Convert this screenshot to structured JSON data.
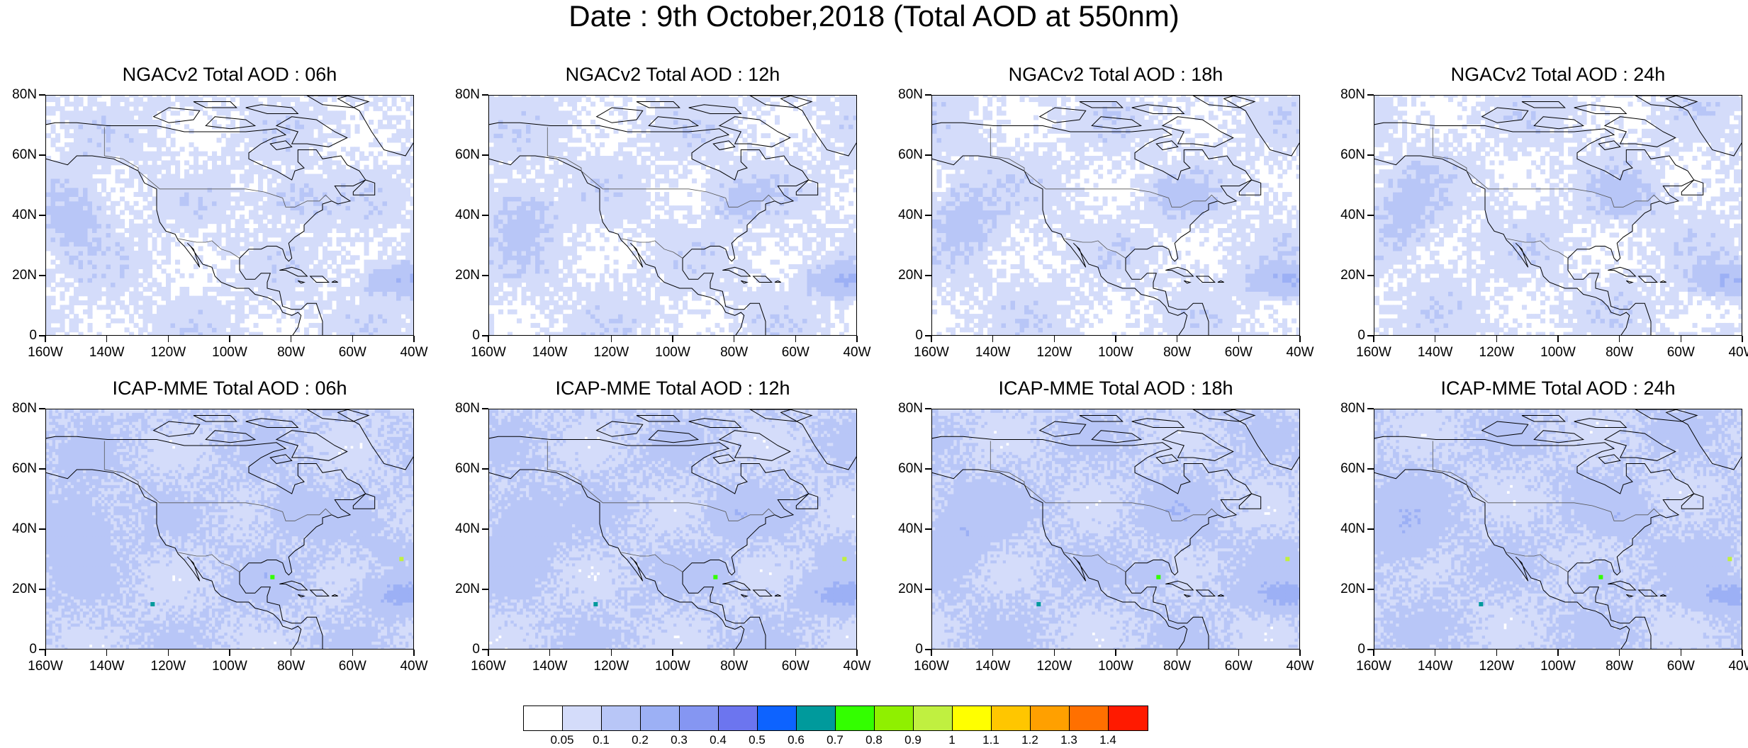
{
  "title": "Date : 9th October,2018 (Total AOD at 550nm)",
  "panels": [
    {
      "title": "NGACv2 Total AOD : 06h",
      "model": "ngac",
      "seed": 11
    },
    {
      "title": "NGACv2 Total AOD : 12h",
      "model": "ngac",
      "seed": 12
    },
    {
      "title": "NGACv2 Total AOD : 18h",
      "model": "ngac",
      "seed": 13
    },
    {
      "title": "NGACv2 Total AOD : 24h",
      "model": "ngac",
      "seed": 14
    },
    {
      "title": "ICAP-MME Total AOD : 06h",
      "model": "icap",
      "seed": 21
    },
    {
      "title": "ICAP-MME Total AOD : 12h",
      "model": "icap",
      "seed": 22
    },
    {
      "title": "ICAP-MME Total AOD : 18h",
      "model": "icap",
      "seed": 23
    },
    {
      "title": "ICAP-MME Total AOD : 24h",
      "model": "icap",
      "seed": 24
    }
  ],
  "lat_labels": [
    "80N",
    "60N",
    "40N",
    "20N",
    "0"
  ],
  "lon_labels": [
    "160W",
    "140W",
    "120W",
    "100W",
    "80W",
    "60W",
    "40W"
  ],
  "map_extent": {
    "lon_min": -160,
    "lon_max": -40,
    "lat_min": 0,
    "lat_max": 80
  },
  "colorbar": {
    "labels": [
      "0.05",
      "0.1",
      "0.2",
      "0.3",
      "0.4",
      "0.5",
      "0.6",
      "0.7",
      "0.8",
      "0.9",
      "1",
      "1.1",
      "1.2",
      "1.3",
      "1.4"
    ],
    "colors": [
      "#ffffff",
      "#d4dcfa",
      "#b8c6f7",
      "#9cb0f5",
      "#8596f2",
      "#6c75ef",
      "#0d63ff",
      "#009a9c",
      "#33ff00",
      "#8ff000",
      "#c0f040",
      "#ffff00",
      "#ffc600",
      "#ffa000",
      "#ff7000",
      "#ff1a00"
    ]
  }
}
